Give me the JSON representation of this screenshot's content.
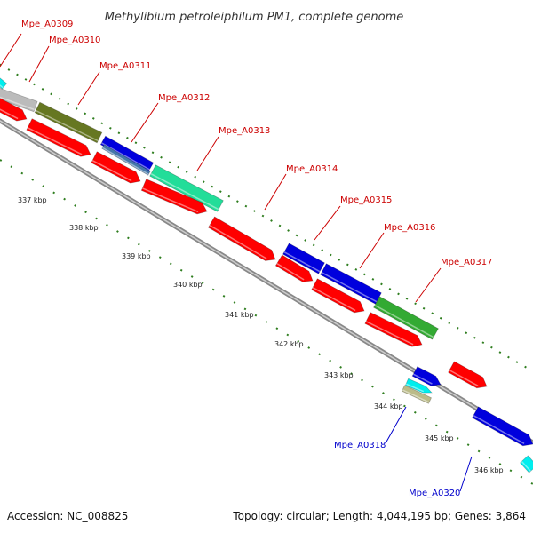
{
  "title": "Methylibium petroleiphilum PM1, complete genome",
  "footer": {
    "accession": "Accession: NC_008825",
    "topology": "Topology: circular; Length: 4,044,195 bp; Genes: 3,864"
  },
  "colors": {
    "label_red": "#cc0000",
    "label_blue": "#0000cc",
    "leader": "#cc0000",
    "leader_blue": "#0000cc",
    "tick_green": "#2e7d1e",
    "backbone": "#888888",
    "red_gene": "#ff0000",
    "blue_gene": "#0000dd",
    "green_gene": "#33aa33",
    "olive_gene": "#667722",
    "aqua_gene": "#22dd99",
    "cyan_gene": "#00eeee",
    "grey_gene": "#bbbbbb",
    "steel_gene": "#4477aa",
    "tan_gene": "#bbbb88"
  },
  "genes": [
    {
      "id": "Mpe_A0309",
      "label_color": "red"
    },
    {
      "id": "Mpe_A0310",
      "label_color": "red"
    },
    {
      "id": "Mpe_A0311",
      "label_color": "red"
    },
    {
      "id": "Mpe_A0312",
      "label_color": "red"
    },
    {
      "id": "Mpe_A0313",
      "label_color": "red"
    },
    {
      "id": "Mpe_A0314",
      "label_color": "red"
    },
    {
      "id": "Mpe_A0315",
      "label_color": "red"
    },
    {
      "id": "Mpe_A0316",
      "label_color": "red"
    },
    {
      "id": "Mpe_A0317",
      "label_color": "red"
    },
    {
      "id": "Mpe_A0318",
      "label_color": "blue"
    },
    {
      "id": "Mpe_A0320",
      "label_color": "blue"
    }
  ],
  "scale_ticks": [
    "337 kbp",
    "338 kbp",
    "339 kbp",
    "340 kbp",
    "341 kbp",
    "342 kbp",
    "343 kbp",
    "344 kbp",
    "345 kbp",
    "346 kbp"
  ]
}
